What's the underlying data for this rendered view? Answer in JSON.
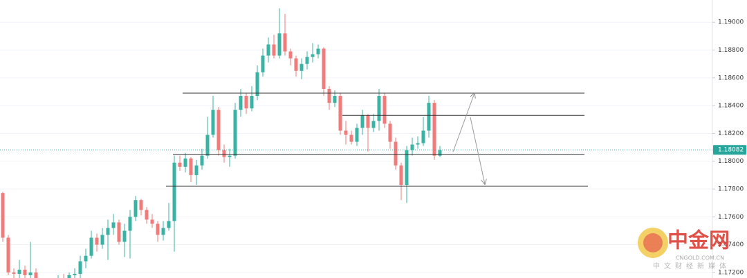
{
  "chart_data": {
    "type": "candlestick",
    "open": [
      1.1777,
      1.1745,
      1.172,
      1.1719,
      1.1722,
      1.1718,
      1.172,
      1.1713,
      1.171,
      1.1714,
      1.1712,
      1.1715,
      1.1713,
      1.1718,
      1.1719,
      1.1728,
      1.1732,
      1.1745,
      1.174,
      1.1747,
      1.1752,
      1.1756,
      1.1742,
      1.175,
      1.176,
      1.1772,
      1.1765,
      1.1758,
      1.1755,
      1.1747,
      1.1752,
      1.1757,
      1.1799,
      1.1796,
      1.1802,
      1.179,
      1.1797,
      1.1804,
      1.1819,
      1.1837,
      1.1808,
      1.1803,
      1.1804,
      1.1837,
      1.1847,
      1.1838,
      1.1847,
      1.1864,
      1.1876,
      1.1884,
      1.1876,
      1.1892,
      1.1879,
      1.1874,
      1.1865,
      1.187,
      1.1875,
      1.1877,
      1.1881,
      1.1852,
      1.1842,
      1.1847,
      1.1822,
      1.1819,
      1.1814,
      1.1824,
      1.1833,
      1.1824,
      1.1829,
      1.1847,
      1.1827,
      1.1814,
      1.1797,
      1.1783,
      1.1808,
      1.1812,
      1.1813,
      1.1822,
      1.1842,
      1.1804
    ],
    "high": [
      1.1778,
      1.1747,
      1.1723,
      1.1729,
      1.1725,
      1.1742,
      1.1723,
      1.1715,
      1.1715,
      1.1716,
      1.1718,
      1.1719,
      1.172,
      1.1723,
      1.1732,
      1.1737,
      1.175,
      1.1748,
      1.1752,
      1.1758,
      1.1762,
      1.1758,
      1.1755,
      1.1765,
      1.1775,
      1.1773,
      1.1767,
      1.1762,
      1.1757,
      1.1757,
      1.177,
      1.1804,
      1.1804,
      1.1806,
      1.1803,
      1.1801,
      1.1809,
      1.1832,
      1.1847,
      1.1839,
      1.1812,
      1.1809,
      1.1842,
      1.1852,
      1.1849,
      1.1854,
      1.1869,
      1.1881,
      1.1889,
      1.1891,
      1.191,
      1.1906,
      1.1881,
      1.1876,
      1.1874,
      1.1879,
      1.1885,
      1.1884,
      1.1882,
      1.1854,
      1.1851,
      1.1849,
      1.1829,
      1.1822,
      1.1827,
      1.1837,
      1.1834,
      1.1834,
      1.1852,
      1.1849,
      1.1829,
      1.1817,
      1.1799,
      1.1811,
      1.1817,
      1.1818,
      1.1832,
      1.1847,
      1.1844,
      1.1811
    ],
    "low": [
      1.1742,
      1.1718,
      1.1716,
      1.1716,
      1.1716,
      1.1716,
      1.171,
      1.1708,
      1.1709,
      1.171,
      1.171,
      1.1712,
      1.1712,
      1.1715,
      1.1716,
      1.1723,
      1.173,
      1.1735,
      1.1737,
      1.1729,
      1.1747,
      1.174,
      1.1731,
      1.173,
      1.1757,
      1.1761,
      1.1755,
      1.1752,
      1.1742,
      1.1743,
      1.175,
      1.1735,
      1.1793,
      1.1792,
      1.1785,
      1.1783,
      1.1794,
      1.1802,
      1.1817,
      1.1804,
      1.1799,
      1.1796,
      1.1802,
      1.1832,
      1.1834,
      1.1836,
      1.1844,
      1.1861,
      1.1871,
      1.1874,
      1.1874,
      1.1876,
      1.1869,
      1.1861,
      1.1859,
      1.1866,
      1.1871,
      1.1874,
      1.1847,
      1.1837,
      1.1839,
      1.1819,
      1.1812,
      1.1812,
      1.1811,
      1.1819,
      1.1807,
      1.1821,
      1.1822,
      1.1824,
      1.1809,
      1.1794,
      1.1772,
      1.177,
      1.1804,
      1.1809,
      1.1811,
      1.1817,
      1.1801,
      1.1803
    ],
    "close": [
      1.1745,
      1.172,
      1.1719,
      1.1722,
      1.1718,
      1.172,
      1.1713,
      1.171,
      1.1714,
      1.1712,
      1.1715,
      1.1713,
      1.1718,
      1.1719,
      1.1728,
      1.1732,
      1.1745,
      1.174,
      1.1747,
      1.1752,
      1.1756,
      1.1742,
      1.175,
      1.176,
      1.1772,
      1.1765,
      1.1758,
      1.1755,
      1.1747,
      1.1752,
      1.1757,
      1.1799,
      1.1796,
      1.1802,
      1.179,
      1.1797,
      1.1804,
      1.1819,
      1.1837,
      1.1808,
      1.1803,
      1.1804,
      1.1837,
      1.1847,
      1.1838,
      1.1847,
      1.1864,
      1.1876,
      1.1884,
      1.1876,
      1.1892,
      1.1879,
      1.1874,
      1.1865,
      1.187,
      1.1875,
      1.1877,
      1.1881,
      1.1852,
      1.1842,
      1.1847,
      1.1822,
      1.1819,
      1.1814,
      1.1824,
      1.1833,
      1.1824,
      1.1829,
      1.1847,
      1.1827,
      1.1814,
      1.1797,
      1.1783,
      1.1808,
      1.1812,
      1.1813,
      1.1822,
      1.1842,
      1.1804,
      1.1808
    ],
    "up_color": "#3bb3a3",
    "down_color": "#ef7b7b",
    "ylim": [
      1.1716,
      1.1916
    ],
    "yticks": [
      {
        "value": 1.172,
        "label": "1.17200"
      },
      {
        "value": 1.174,
        "label": "1.17400"
      },
      {
        "value": 1.176,
        "label": "1.17600"
      },
      {
        "value": 1.178,
        "label": "1.17800"
      },
      {
        "value": 1.18,
        "label": "1.18000"
      },
      {
        "value": 1.182,
        "label": "1.18200"
      },
      {
        "value": 1.184,
        "label": "1.18400"
      },
      {
        "value": 1.186,
        "label": "1.18600"
      },
      {
        "value": 1.188,
        "label": "1.18800"
      },
      {
        "value": 1.19,
        "label": "1.19000"
      }
    ],
    "grid": true,
    "levels": [
      1.1849,
      1.1833,
      1.1805,
      1.1782
    ],
    "last_price": 1.18082,
    "last_price_color": "#26a69a"
  },
  "watermark": {
    "logo": "中金网",
    "domain": "CNGOLD.COM.CN",
    "tagline": "中文财经新媒体"
  }
}
